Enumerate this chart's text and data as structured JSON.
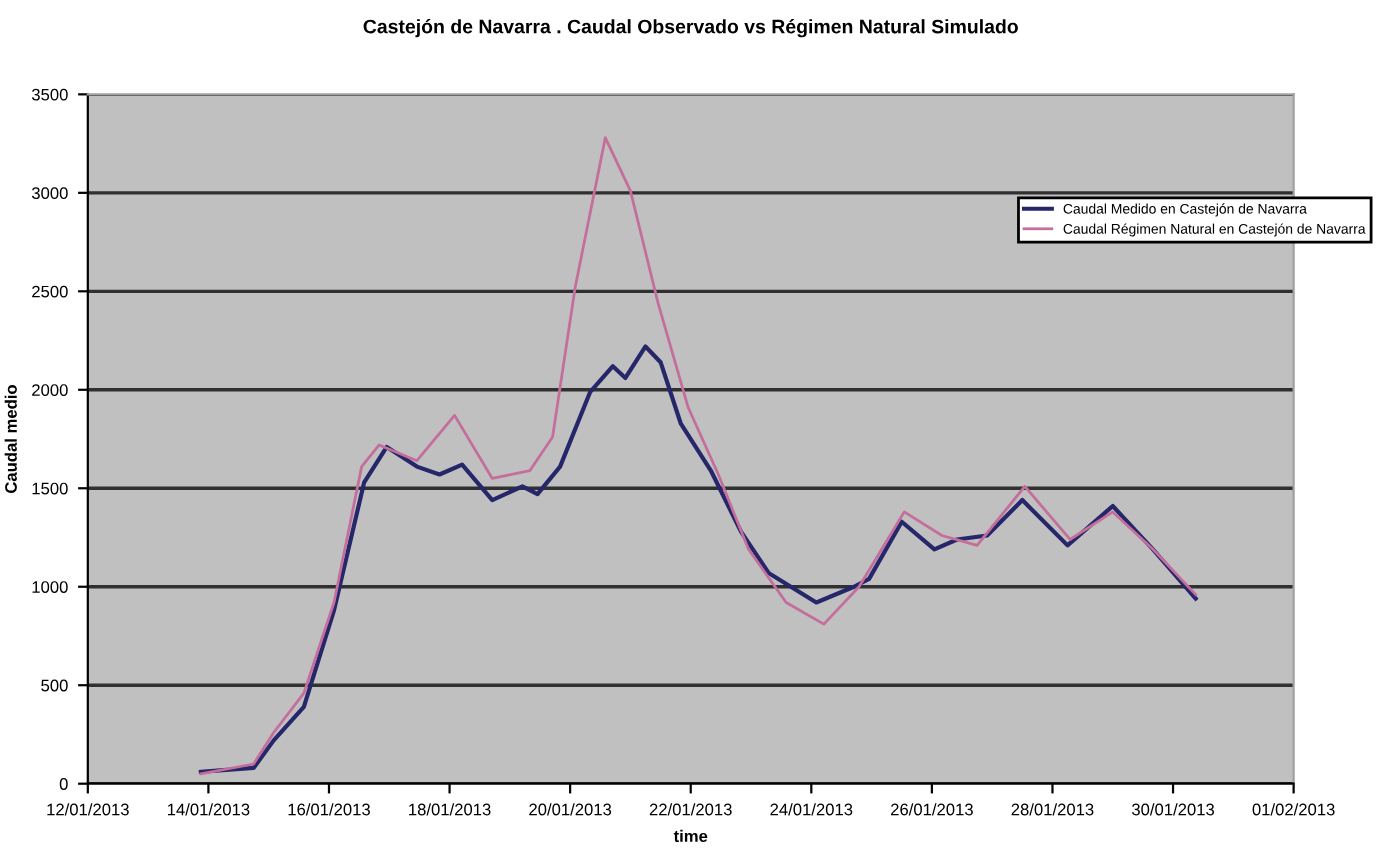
{
  "chart_data": {
    "type": "line",
    "title": "Castejón de Navarra . Caudal Observado vs Régimen Natural Simulado",
    "xlabel": "time",
    "ylabel": "Caudal medio",
    "series": [
      {
        "name": "Caudal Medido en Castejón de Navarra",
        "color": "#26266a",
        "x": [
          "2013-01-13T21:00",
          "2013-01-14T18:00",
          "2013-01-15T02:00",
          "2013-01-15T14:00",
          "2013-01-16T02:00",
          "2013-01-16T14:00",
          "2013-01-16T23:00",
          "2013-01-17T11:00",
          "2013-01-17T20:00",
          "2013-01-18T05:00",
          "2013-01-18T17:00",
          "2013-01-19T05:00",
          "2013-01-19T11:00",
          "2013-01-19T20:00",
          "2013-01-20T08:00",
          "2013-01-20T17:00",
          "2013-01-20T22:00",
          "2013-01-21T06:00",
          "2013-01-21T12:00",
          "2013-01-21T20:00",
          "2013-01-22T08:00",
          "2013-01-22T20:00",
          "2013-01-23T07:00",
          "2013-01-24T02:00",
          "2013-01-24T17:00",
          "2013-01-24T23:00",
          "2013-01-25T12:00",
          "2013-01-26T01:00",
          "2013-01-26T10:00",
          "2013-01-26T22:00",
          "2013-01-27T12:00",
          "2013-01-28T06:00",
          "2013-01-29T00:00",
          "2013-01-29T16:00",
          "2013-01-30T09:00"
        ],
        "values": [
          60,
          80,
          220,
          390,
          880,
          1530,
          1710,
          1610,
          1570,
          1620,
          1440,
          1510,
          1470,
          1610,
          1990,
          2120,
          2060,
          2220,
          2140,
          1830,
          1590,
          1280,
          1070,
          920,
          1000,
          1040,
          1330,
          1190,
          1240,
          1260,
          1440,
          1210,
          1410,
          1190,
          940
        ]
      },
      {
        "name": "Caudal Régimen Natural en Castejón de Navarra",
        "color": "#c46e9c",
        "x": [
          "2013-01-13T21:00",
          "2013-01-14T18:00",
          "2013-01-15T02:00",
          "2013-01-15T14:00",
          "2013-01-16T02:00",
          "2013-01-16T13:00",
          "2013-01-16T20:00",
          "2013-01-17T11:00",
          "2013-01-18T02:00",
          "2013-01-18T17:00",
          "2013-01-19T08:00",
          "2013-01-19T17:00",
          "2013-01-20T02:00",
          "2013-01-20T14:00",
          "2013-01-21T00:00",
          "2013-01-21T11:00",
          "2013-01-21T23:00",
          "2013-01-22T11:00",
          "2013-01-22T23:00",
          "2013-01-23T14:00",
          "2013-01-24T05:00",
          "2013-01-24T19:00",
          "2013-01-25T13:00",
          "2013-01-26T04:00",
          "2013-01-26T18:00",
          "2013-01-27T13:00",
          "2013-01-28T07:00",
          "2013-01-29T00:00",
          "2013-01-29T16:00",
          "2013-01-30T09:00"
        ],
        "values": [
          50,
          100,
          260,
          460,
          920,
          1610,
          1720,
          1640,
          1870,
          1550,
          1590,
          1760,
          2520,
          3280,
          3010,
          2440,
          1910,
          1570,
          1190,
          920,
          810,
          1000,
          1380,
          1260,
          1210,
          1510,
          1240,
          1380,
          1190,
          960
        ]
      }
    ],
    "xlim": [
      "2013-01-12",
      "2013-02-01"
    ],
    "xticks": [
      {
        "value": "2013-01-12",
        "label": "12/01/2013"
      },
      {
        "value": "2013-01-14",
        "label": "14/01/2013"
      },
      {
        "value": "2013-01-16",
        "label": "16/01/2013"
      },
      {
        "value": "2013-01-18",
        "label": "18/01/2013"
      },
      {
        "value": "2013-01-20",
        "label": "20/01/2013"
      },
      {
        "value": "2013-01-22",
        "label": "22/01/2013"
      },
      {
        "value": "2013-01-24",
        "label": "24/01/2013"
      },
      {
        "value": "2013-01-26",
        "label": "26/01/2013"
      },
      {
        "value": "2013-01-28",
        "label": "28/01/2013"
      },
      {
        "value": "2013-01-30",
        "label": "30/01/2013"
      },
      {
        "value": "2013-02-01",
        "label": "01/02/2013"
      }
    ],
    "ylim": [
      0,
      3500
    ],
    "yticks": [
      0,
      500,
      1000,
      1500,
      2000,
      2500,
      3000,
      3500
    ],
    "grid": "y",
    "legend": "top right",
    "marker": "none",
    "line_style": "solid"
  }
}
